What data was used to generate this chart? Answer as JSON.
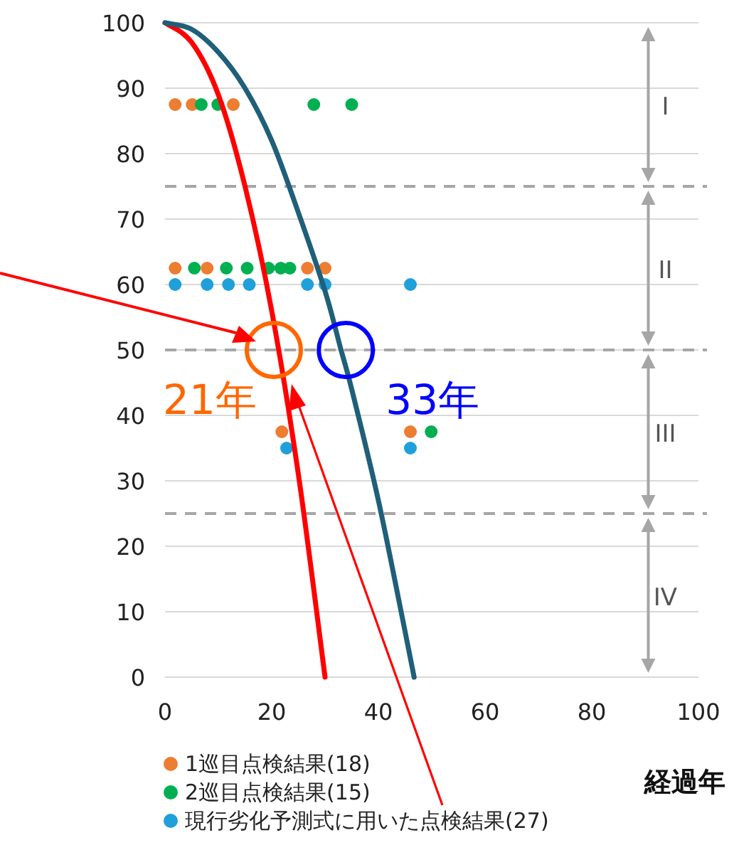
{
  "chart_data": {
    "type": "scatter",
    "xlabel": "経過年",
    "xlim": [
      0,
      100
    ],
    "xticks": [
      0,
      20,
      40,
      60,
      80,
      100
    ],
    "ylim": [
      0,
      100
    ],
    "yticks": [
      0,
      10,
      20,
      30,
      40,
      50,
      60,
      70,
      80,
      90,
      100
    ],
    "grid": "y",
    "legend": "bottom left",
    "marker": "circle",
    "series": [
      {
        "name": "1巡目点検結果(18)",
        "color": "#ed7d31",
        "x": [
          1.9,
          5.1,
          12.8,
          1.9,
          7.9,
          26.7,
          30.0,
          21.9,
          46.0
        ],
        "values": [
          87.5,
          87.5,
          87.5,
          62.5,
          62.5,
          62.5,
          62.5,
          37.5,
          37.5
        ]
      },
      {
        "name": "2巡目点検結果(15)",
        "color": "#00b050",
        "x": [
          6.8,
          9.9,
          27.9,
          35.0,
          5.5,
          11.5,
          15.4,
          19.4,
          21.7,
          23.4,
          49.9
        ],
        "values": [
          87.5,
          87.5,
          87.5,
          87.5,
          62.5,
          62.5,
          62.5,
          62.5,
          62.5,
          62.5,
          37.5
        ]
      },
      {
        "name": "現行劣化予測式に用いた点検結果(27)",
        "color": "#1fa0db",
        "x": [
          1.9,
          7.9,
          11.9,
          15.8,
          26.7,
          30.0,
          46.0,
          22.8,
          46.0
        ],
        "values": [
          60,
          60,
          60,
          60,
          60,
          60,
          60,
          35,
          35
        ]
      },
      {
        "type": "line",
        "marker": "none",
        "color": "#ff0000",
        "x": [
          0,
          5,
          10,
          15,
          20,
          25,
          30
        ],
        "values": [
          100,
          97,
          89,
          75,
          56,
          31,
          0
        ]
      },
      {
        "type": "line",
        "marker": "none",
        "color": "#1f5f7a",
        "x": [
          0,
          5,
          10,
          15,
          20,
          25,
          30,
          33,
          35,
          40,
          45,
          46.7
        ],
        "values": [
          100,
          99,
          95.5,
          90,
          82,
          71,
          59,
          50,
          44,
          27,
          7,
          0
        ]
      }
    ],
    "ref_lines": [
      {
        "axis": "y",
        "value": 75,
        "color": "#a6a6a6",
        "line_style": "dashed"
      },
      {
        "axis": "y",
        "value": 50,
        "color": "#a6a6a6",
        "line_style": "dashed"
      },
      {
        "axis": "y",
        "value": 25,
        "color": "#a6a6a6",
        "line_style": "dashed"
      }
    ],
    "annotations": [
      {
        "text": "21年",
        "x": 20.4,
        "y": 50
      },
      {
        "text": "33年",
        "x": 33.9,
        "y": 50
      },
      "I",
      "II",
      "III",
      "IV"
    ]
  }
}
